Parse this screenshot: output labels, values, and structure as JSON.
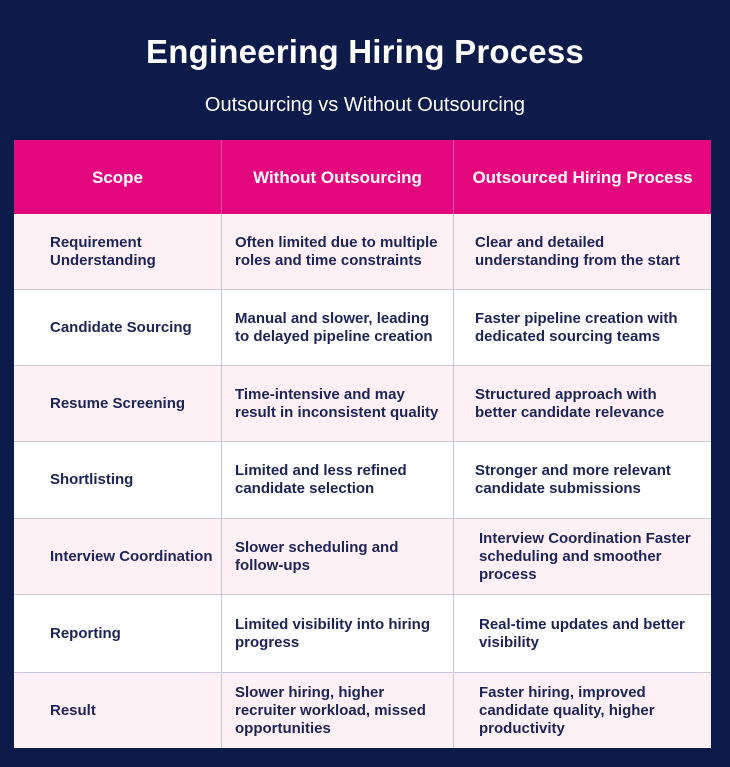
{
  "title": "Engineering Hiring Process",
  "subtitle": "Outsourcing vs Without Outsourcing",
  "table": {
    "headers": [
      "Scope",
      "Without Outsourcing",
      "Outsourced Hiring Process"
    ],
    "rows": [
      {
        "scope": "Requirement Understanding",
        "without": "Often limited due to multiple roles and time constraints",
        "outsourced": "Clear and detailed understanding from the start"
      },
      {
        "scope": "Candidate Sourcing",
        "without": "Manual and slower, leading to delayed pipeline creation",
        "outsourced": "Faster pipeline creation with dedicated sourcing teams"
      },
      {
        "scope": "Resume Screening",
        "without": "Time-intensive and may result in inconsistent quality",
        "outsourced": "Structured approach with better candidate relevance"
      },
      {
        "scope": "Shortlisting",
        "without": "Limited and less refined candidate selection",
        "outsourced": "Stronger and more relevant candidate submissions"
      },
      {
        "scope": "Interview Coordination",
        "without": "Slower scheduling and follow-ups",
        "outsourced": "Interview Coordination Faster scheduling and smoother process"
      },
      {
        "scope": "Reporting",
        "without": "Limited visibility into hiring progress",
        "outsourced": "Real-time updates and better visibility"
      },
      {
        "scope": "Result",
        "without": "Slower hiring, higher recruiter workload, missed opportunities",
        "outsourced": "Faster hiring, improved candidate quality, higher productivity"
      }
    ]
  },
  "colors": {
    "background": "#0d1b4b",
    "header": "#e5077e",
    "row_alt": "#fdf1f6",
    "text": "#1c2457"
  }
}
